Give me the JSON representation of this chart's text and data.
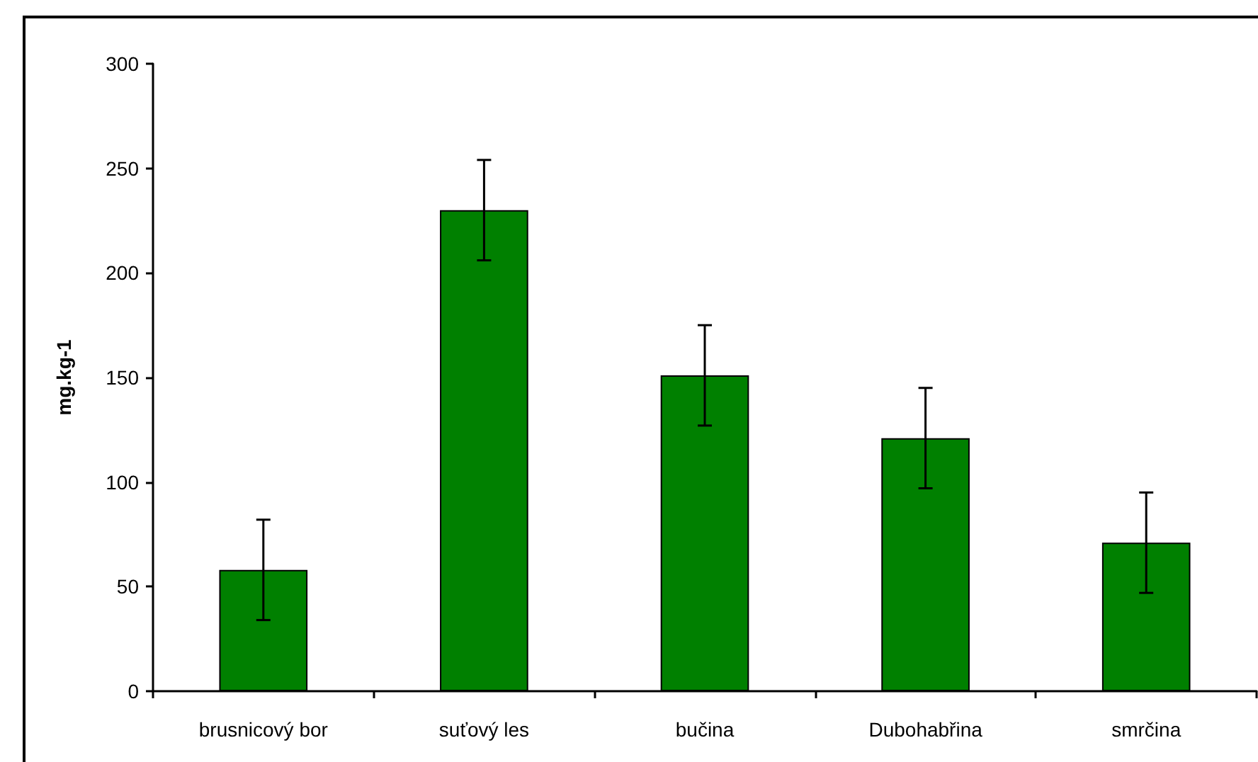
{
  "chart_data": {
    "type": "bar",
    "ylabel": "mg.kg-1",
    "categories": [
      "brusnicový bor",
      "suťový les",
      "bučina",
      "Dubohabřina",
      "smrčina"
    ],
    "values": [
      58,
      230,
      151,
      121,
      71
    ],
    "errors": [
      24,
      24,
      24,
      24,
      24
    ],
    "color": "#008000",
    "ylim": [
      0,
      300
    ],
    "yticks": [
      0,
      50,
      100,
      150,
      200,
      250,
      300
    ],
    "grid": false
  }
}
